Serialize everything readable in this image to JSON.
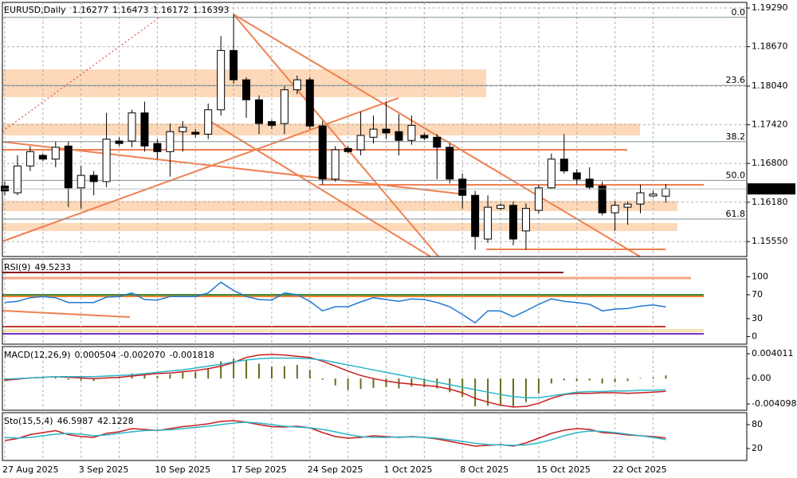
{
  "chart_data": [
    {
      "type": "candlestick",
      "title": "EURUSD,Daily",
      "categories": [
        "27 Aug 2025",
        null,
        null,
        null,
        null,
        null,
        "3 Sep 2025",
        null,
        null,
        null,
        null,
        null,
        "10 Sep 2025",
        null,
        null,
        null,
        null,
        null,
        "17 Sep 2025",
        null,
        null,
        null,
        null,
        null,
        "24 Sep 2025",
        null,
        null,
        null,
        null,
        null,
        "1 Oct 2025",
        null,
        null,
        null,
        null,
        null,
        "8 Oct 2025",
        null,
        null,
        null,
        null,
        null,
        "15 Oct 2025",
        null,
        null,
        null,
        null,
        null,
        "22 Oct 2025",
        null,
        null,
        null,
        null
      ],
      "open": [
        1.1644,
        1.1633,
        1.1676,
        1.1693,
        1.1687,
        1.1708,
        1.1641,
        1.1661,
        1.1651,
        1.1716,
        1.1716,
        1.1761,
        1.1712,
        1.1699,
        1.1731,
        1.173,
        1.1727,
        1.1766,
        1.1861,
        1.1814,
        1.1782,
        1.1747,
        1.1744,
        1.1798,
        1.1814,
        1.174,
        1.1655,
        1.1704,
        1.1702,
        1.1722,
        1.1735,
        1.1731,
        1.1717,
        1.1725,
        1.1722,
        1.1706,
        1.1655,
        1.1629,
        1.1559,
        1.1608,
        1.1613,
        1.1572,
        1.1605,
        1.1641,
        1.1687,
        1.1665,
        1.1655,
        1.1644,
        1.1601,
        1.161,
        1.1615,
        1.1628,
        1.16277
      ],
      "high": [
        1.1651,
        1.1693,
        1.1708,
        1.1696,
        1.1715,
        1.1715,
        1.1676,
        1.1668,
        1.1761,
        1.1722,
        1.1766,
        1.1779,
        1.1719,
        1.1744,
        1.1748,
        1.1735,
        1.1776,
        1.1884,
        1.1919,
        1.1818,
        1.1789,
        1.175,
        1.1804,
        1.1821,
        1.1818,
        1.1748,
        1.1708,
        1.1708,
        1.1763,
        1.1757,
        1.1779,
        1.1759,
        1.1757,
        1.1729,
        1.1727,
        1.1712,
        1.1664,
        1.1636,
        1.1629,
        1.1616,
        1.1619,
        1.1616,
        1.1646,
        1.1696,
        1.1727,
        1.1671,
        1.1674,
        1.1651,
        1.162,
        1.1619,
        1.1646,
        1.1636,
        1.16473
      ],
      "low": [
        1.1629,
        1.1629,
        1.1668,
        1.1684,
        1.1674,
        1.161,
        1.1608,
        1.1629,
        1.1642,
        1.1708,
        1.1706,
        1.1699,
        1.1687,
        1.1659,
        1.1699,
        1.1722,
        1.1719,
        1.1757,
        1.1808,
        1.1753,
        1.1727,
        1.1735,
        1.1727,
        1.1791,
        1.1735,
        1.1646,
        1.1651,
        1.1696,
        1.1693,
        1.1712,
        1.1719,
        1.1693,
        1.171,
        1.1717,
        1.1655,
        1.1648,
        1.1608,
        1.1542,
        1.1553,
        1.1605,
        1.1549,
        1.1542,
        1.16,
        1.1639,
        1.1664,
        1.1646,
        1.1638,
        1.1597,
        1.1572,
        1.1582,
        1.16,
        1.1626,
        1.16172
      ],
      "close": [
        1.1636,
        1.1676,
        1.1699,
        1.1687,
        1.1706,
        1.1641,
        1.1661,
        1.1651,
        1.1719,
        1.1712,
        1.1761,
        1.1708,
        1.1699,
        1.1731,
        1.1738,
        1.1727,
        1.1766,
        1.1861,
        1.1814,
        1.1782,
        1.1744,
        1.1741,
        1.1798,
        1.1814,
        1.174,
        1.1655,
        1.1702,
        1.1699,
        1.1725,
        1.1735,
        1.1729,
        1.1717,
        1.1741,
        1.1721,
        1.1706,
        1.1655,
        1.1629,
        1.1563,
        1.161,
        1.1613,
        1.1559,
        1.1608,
        1.1641,
        1.1687,
        1.1668,
        1.1655,
        1.1642,
        1.1601,
        1.1613,
        1.1615,
        1.1633,
        1.1631,
        1.16393
      ],
      "ylim": [
        1.1531,
        1.1938
      ],
      "yticks": [
        {
          "value": 1.1929,
          "label": "1.19290"
        },
        {
          "value": 1.1867,
          "label": "1.18670"
        },
        {
          "value": 1.1804,
          "label": "1.18040"
        },
        {
          "value": 1.1742,
          "label": "1.17420"
        },
        {
          "value": 1.168,
          "label": "1.16800"
        },
        {
          "value": 1.1618,
          "label": "1.16180"
        },
        {
          "value": 1.1555,
          "label": "1.15550"
        }
      ],
      "fib_levels": [
        {
          "value": 1.1914,
          "label": "0.0"
        },
        {
          "value": 1.1805,
          "label": "23.6"
        },
        {
          "value": 1.1715,
          "label": "38.2"
        },
        {
          "value": 1.1653,
          "label": "50.0"
        },
        {
          "value": 1.1591,
          "label": "61.8"
        }
      ],
      "grid": true
    },
    {
      "type": "line",
      "title": "RSI(9)",
      "series": [
        {
          "color": "#1e78d2",
          "values": [
            57,
            59,
            65,
            67,
            65,
            57,
            57,
            57,
            66,
            67,
            73,
            62,
            61,
            67,
            67,
            67,
            73,
            91,
            77,
            67,
            62,
            61,
            73,
            70,
            59,
            43,
            50,
            50,
            58,
            65,
            62,
            59,
            63,
            62,
            57,
            50,
            37,
            23,
            43,
            43,
            33,
            43,
            54,
            63,
            59,
            57,
            54,
            43,
            46,
            47,
            51,
            53,
            49.5233
          ]
        }
      ],
      "ylim": [
        -12.7,
        130
      ],
      "yticks": [
        100,
        70,
        30,
        0
      ]
    },
    {
      "type": "combo",
      "title": "MACD(12,26,9)",
      "series": [
        {
          "color": "#6b6b1f",
          "style": "bar",
          "values": [
            -0.0003,
            -0.0002,
            0.0001,
            0.0002,
            0.0003,
            -0.0002,
            -0.0003,
            -0.0004,
            0.0001,
            0.0003,
            0.0008,
            0.0006,
            0.0004,
            0.0007,
            0.001,
            0.0011,
            0.0015,
            0.0028,
            0.0032,
            0.003,
            0.0024,
            0.0019,
            0.002,
            0.0022,
            0.0014,
            -0.0002,
            -0.0011,
            -0.0018,
            -0.0017,
            -0.0015,
            -0.0014,
            -0.0016,
            -0.0013,
            -0.0014,
            -0.0016,
            -0.0022,
            -0.003,
            -0.0045,
            -0.0044,
            -0.0042,
            -0.0046,
            -0.0038,
            -0.0024,
            -0.0008,
            -0.0003,
            -0.0004,
            -0.0003,
            -0.0008,
            -0.0006,
            -0.0004,
            0.0001,
            0.0002,
            0.000504
          ]
        },
        {
          "color": "#c81e1e",
          "style": "line",
          "values": [
            -0.0003,
            -0.0001,
            0.0001,
            0.0002,
            0.0003,
            0.0002,
            0.0001,
            0.0,
            0.0001,
            0.0002,
            0.0004,
            0.0006,
            0.0008,
            0.0009,
            0.0011,
            0.0013,
            0.0016,
            0.002,
            0.0026,
            0.0034,
            0.0038,
            0.0039,
            0.0038,
            0.0036,
            0.0034,
            0.0028,
            0.002,
            0.0012,
            0.0005,
            0.0,
            -0.0004,
            -0.0007,
            -0.0009,
            -0.0011,
            -0.0013,
            -0.0017,
            -0.0023,
            -0.0032,
            -0.0038,
            -0.0043,
            -0.0046,
            -0.0045,
            -0.004,
            -0.0032,
            -0.0026,
            -0.0024,
            -0.0024,
            -0.0023,
            -0.0023,
            -0.0024,
            -0.0023,
            -0.0022,
            -0.00207
          ],
          "value_labels": [
            null,
            null,
            null,
            null,
            null,
            null,
            null,
            null,
            null,
            null,
            null,
            null,
            null,
            null,
            null,
            null,
            null,
            null,
            null,
            null,
            null,
            null,
            null,
            null,
            null,
            null,
            null,
            null,
            null,
            null,
            null,
            null,
            null,
            null,
            null,
            null,
            null,
            null,
            null,
            null,
            null,
            null,
            null,
            null,
            null,
            null,
            null,
            null,
            null,
            null,
            null,
            null,
            "-0.002070"
          ]
        },
        {
          "color": "#29b6c9",
          "style": "line",
          "values": [
            -0.0001,
            0,
            0.0001,
            0.0002,
            0.0003,
            0.0003,
            0.0003,
            0.0003,
            0.0004,
            0.0005,
            0.0006,
            0.0008,
            0.001,
            0.0012,
            0.0014,
            0.0017,
            0.002,
            0.0023,
            0.0027,
            0.003,
            0.0032,
            0.0033,
            0.0033,
            0.0033,
            0.0032,
            0.003,
            0.0026,
            0.0022,
            0.0018,
            0.0014,
            0.001,
            0.0006,
            0.0002,
            -0.0002,
            -0.0006,
            -0.001,
            -0.0014,
            -0.0018,
            -0.0022,
            -0.0026,
            -0.0029,
            -0.0031,
            -0.0031,
            -0.0028,
            -0.0025,
            -0.0022,
            -0.0021,
            -0.0021,
            -0.002,
            -0.002,
            -0.0019,
            -0.0019,
            -0.001818
          ]
        }
      ],
      "ylim": [
        -0.00513,
        0.00517
      ],
      "yticks": [
        0.004011,
        {
          "value": 0,
          "label": "0.00"
        },
        -0.004098
      ]
    },
    {
      "type": "line",
      "title": "Sto(15,5,4)",
      "series": [
        {
          "color": "#c81e1e",
          "values": [
            40,
            45,
            55,
            60,
            65,
            55,
            50,
            48,
            58,
            62,
            70,
            68,
            65,
            70,
            75,
            78,
            82,
            88,
            90,
            86,
            80,
            75,
            74,
            76,
            72,
            60,
            50,
            46,
            48,
            52,
            50,
            48,
            50,
            48,
            44,
            38,
            32,
            26,
            28,
            30,
            26,
            34,
            46,
            58,
            66,
            70,
            68,
            60,
            58,
            54,
            52,
            50,
            46.5987
          ]
        },
        {
          "color": "#29b6c9",
          "values": [
            48,
            46,
            48,
            52,
            56,
            58,
            56,
            52,
            54,
            58,
            62,
            65,
            66,
            67,
            70,
            73,
            76,
            80,
            84,
            86,
            84,
            80,
            76,
            74,
            72,
            68,
            62,
            55,
            50,
            48,
            48,
            49,
            49,
            48,
            46,
            42,
            38,
            33,
            30,
            29,
            28,
            29,
            34,
            42,
            52,
            60,
            64,
            63,
            60,
            56,
            52,
            48,
            42.1228
          ]
        }
      ],
      "ylim": [
        -10,
        110
      ],
      "yticks": [
        80,
        20
      ]
    }
  ]
}
